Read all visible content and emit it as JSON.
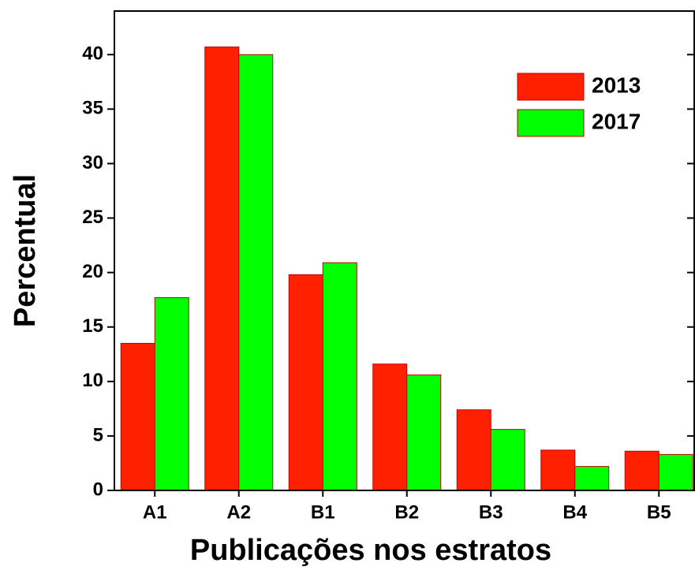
{
  "chart_data": {
    "type": "bar",
    "xlabel": "Publicações nos estratos",
    "ylabel": "Percentual",
    "categories": [
      "A1",
      "A2",
      "B1",
      "B2",
      "B3",
      "B4",
      "B5"
    ],
    "series": [
      {
        "name": "2013",
        "color": "#ff2000",
        "values": [
          13.5,
          40.7,
          19.8,
          11.6,
          7.4,
          3.7,
          3.6
        ]
      },
      {
        "name": "2017",
        "color": "#00ff00",
        "values": [
          17.7,
          40.0,
          20.9,
          10.6,
          5.6,
          2.2,
          3.3
        ]
      }
    ],
    "ylim": [
      0,
      44
    ],
    "yticks": [
      0,
      5,
      10,
      15,
      20,
      25,
      30,
      35,
      40
    ],
    "legend": "upper right"
  }
}
